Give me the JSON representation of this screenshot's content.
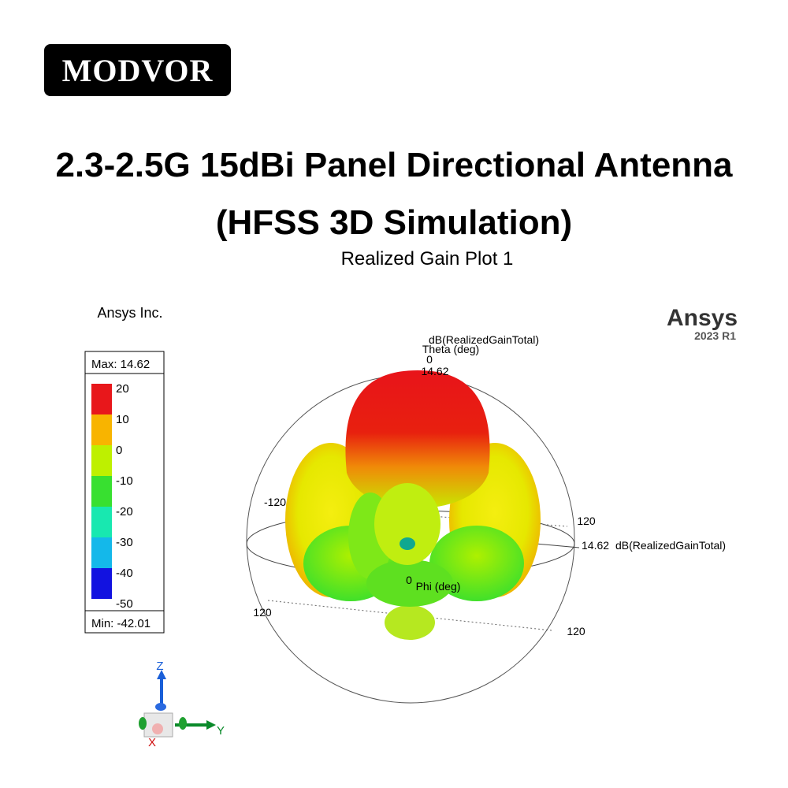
{
  "brand": "MODVOR",
  "title": {
    "line1": "2.3-2.5G 15dBi Panel Directional Antenna",
    "line2": "(HFSS 3D Simulation)"
  },
  "plot": {
    "title": "Realized Gain Plot 1",
    "vendor": "Ansys Inc.",
    "logo": {
      "name": "Ansys",
      "version": "2023 R1"
    },
    "legend": {
      "max": "Max: 14.62",
      "min": "Min: -42.01",
      "levels": [
        "20",
        "10",
        "0",
        "-10",
        "-20",
        "-30",
        "-40",
        "-50"
      ],
      "colors": [
        "#e8171b",
        "#f8b400",
        "#bef000",
        "#38e030",
        "#18e8b0",
        "#14b8ea",
        "#1212e0"
      ]
    },
    "labels": {
      "quantity_top": "dB(RealizedGainTotal)",
      "theta": "Theta (deg)",
      "theta_zero": "0",
      "max_top": "14.62",
      "left_angle": "-120",
      "right_angle": "120",
      "max_right": "14.62",
      "quantity_right": "dB(RealizedGainTotal)",
      "phi_zero": "0",
      "phi": "Phi (deg)",
      "lower_left_angle": "120",
      "lower_right_angle": "120"
    },
    "triad": {
      "z": "Z",
      "y": "Y",
      "x": "X"
    }
  }
}
